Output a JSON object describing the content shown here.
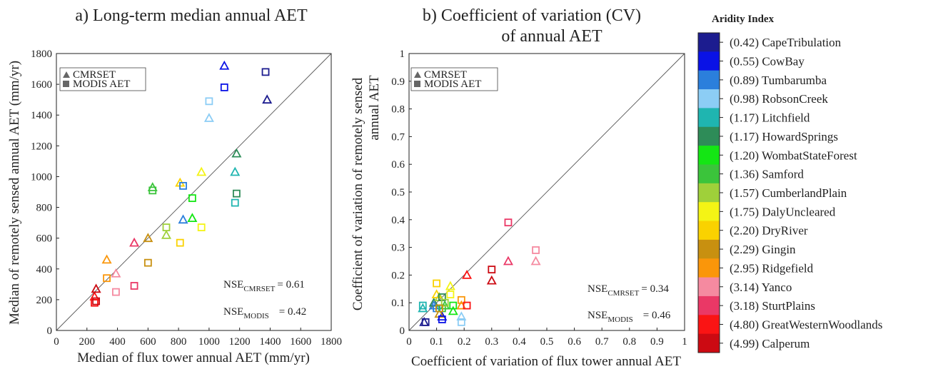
{
  "chart_data": [
    {
      "type": "scatter",
      "title": "a) Long-term median annual AET",
      "xlabel": "Median of flux tower annual AET (mm/yr)",
      "ylabel": "Median of remotely sensed annual AET (mm/yr)",
      "xlim": [
        0,
        1800
      ],
      "ylim": [
        0,
        1800
      ],
      "xticks": [
        "0",
        "200",
        "400",
        "600",
        "800",
        "1000",
        "1200",
        "1400",
        "1600",
        "1800"
      ],
      "yticks": [
        "0",
        "200",
        "400",
        "600",
        "800",
        "1000",
        "1200",
        "1400",
        "1600",
        "1800"
      ],
      "legend": {
        "placement": "top-left",
        "entries": [
          "CMRSET",
          "MODIS AET"
        ]
      },
      "annotations": [
        {
          "label": "NSE",
          "subscript": "CMRSET",
          "value": "= 0.61"
        },
        {
          "label": "NSE",
          "subscript": "MODIS",
          "value": "= 0.42"
        }
      ],
      "grid": false,
      "one_to_one_line": true,
      "series": [
        {
          "name": "CMRSET",
          "marker": "triangle",
          "points": [
            {
              "x": 1380,
              "y": 1500,
              "site": 0
            },
            {
              "x": 1100,
              "y": 1720,
              "site": 1
            },
            {
              "x": 830,
              "y": 720,
              "site": 2
            },
            {
              "x": 1000,
              "y": 1380,
              "site": 3
            },
            {
              "x": 1170,
              "y": 1030,
              "site": 4
            },
            {
              "x": 1180,
              "y": 1150,
              "site": 5
            },
            {
              "x": 890,
              "y": 730,
              "site": 6
            },
            {
              "x": 630,
              "y": 930,
              "site": 7
            },
            {
              "x": 720,
              "y": 620,
              "site": 8
            },
            {
              "x": 950,
              "y": 1030,
              "site": 9
            },
            {
              "x": 810,
              "y": 960,
              "site": 10
            },
            {
              "x": 600,
              "y": 600,
              "site": 11
            },
            {
              "x": 330,
              "y": 460,
              "site": 12
            },
            {
              "x": 390,
              "y": 370,
              "site": 13
            },
            {
              "x": 510,
              "y": 570,
              "site": 14
            },
            {
              "x": 250,
              "y": 220,
              "site": 15
            },
            {
              "x": 260,
              "y": 270,
              "site": 16
            }
          ]
        },
        {
          "name": "MODIS AET",
          "marker": "square",
          "points": [
            {
              "x": 1370,
              "y": 1680,
              "site": 0
            },
            {
              "x": 1100,
              "y": 1580,
              "site": 1
            },
            {
              "x": 830,
              "y": 940,
              "site": 2
            },
            {
              "x": 1000,
              "y": 1490,
              "site": 3
            },
            {
              "x": 1170,
              "y": 830,
              "site": 4
            },
            {
              "x": 1180,
              "y": 890,
              "site": 5
            },
            {
              "x": 890,
              "y": 860,
              "site": 6
            },
            {
              "x": 630,
              "y": 910,
              "site": 7
            },
            {
              "x": 720,
              "y": 670,
              "site": 8
            },
            {
              "x": 950,
              "y": 670,
              "site": 9
            },
            {
              "x": 810,
              "y": 570,
              "site": 10
            },
            {
              "x": 600,
              "y": 440,
              "site": 11
            },
            {
              "x": 330,
              "y": 340,
              "site": 12
            },
            {
              "x": 390,
              "y": 250,
              "site": 13
            },
            {
              "x": 510,
              "y": 290,
              "site": 14
            },
            {
              "x": 250,
              "y": 180,
              "site": 15
            },
            {
              "x": 260,
              "y": 190,
              "site": 16
            }
          ]
        }
      ]
    },
    {
      "type": "scatter",
      "title": "b) Coefficient of variation (CV)",
      "title_line2": "of annual AET",
      "xlabel": "Coefficient of variation of flux tower annual AET",
      "ylabel": "Coefficient of variation of remotely sensed",
      "ylabel_line2": "annual AET",
      "xlim": [
        0,
        1
      ],
      "ylim": [
        0,
        1
      ],
      "xticks": [
        "0",
        "0.1",
        "0.2",
        "0.3",
        "0.4",
        "0.5",
        "0.6",
        "0.7",
        "0.8",
        "0.9",
        "1"
      ],
      "yticks": [
        "0",
        "0.1",
        "0.2",
        "0.3",
        "0.4",
        "0.5",
        "0.6",
        "0.7",
        "0.8",
        "0.9",
        "1"
      ],
      "legend": {
        "placement": "top-left",
        "entries": [
          "CMRSET",
          "MODIS AET"
        ]
      },
      "annotations": [
        {
          "label": "NSE",
          "subscript": "CMRSET",
          "value": "= 0.34"
        },
        {
          "label": "NSE",
          "subscript": "MODIS",
          "value": "= 0.46"
        }
      ],
      "grid": false,
      "one_to_one_line": true,
      "series": [
        {
          "name": "CMRSET",
          "marker": "triangle",
          "points": [
            {
              "x": 0.055,
              "y": 0.03,
              "site": 0
            },
            {
              "x": 0.12,
              "y": 0.05,
              "site": 1
            },
            {
              "x": 0.09,
              "y": 0.09,
              "site": 2
            },
            {
              "x": 0.19,
              "y": 0.05,
              "site": 3
            },
            {
              "x": 0.05,
              "y": 0.08,
              "site": 4
            },
            {
              "x": 0.09,
              "y": 0.1,
              "site": 5
            },
            {
              "x": 0.16,
              "y": 0.07,
              "site": 6
            },
            {
              "x": 0.13,
              "y": 0.09,
              "site": 7
            },
            {
              "x": 0.11,
              "y": 0.12,
              "site": 8
            },
            {
              "x": 0.15,
              "y": 0.16,
              "site": 9
            },
            {
              "x": 0.1,
              "y": 0.13,
              "site": 10
            },
            {
              "x": 0.11,
              "y": 0.06,
              "site": 11
            },
            {
              "x": 0.19,
              "y": 0.09,
              "site": 12
            },
            {
              "x": 0.46,
              "y": 0.25,
              "site": 13
            },
            {
              "x": 0.36,
              "y": 0.25,
              "site": 14
            },
            {
              "x": 0.21,
              "y": 0.2,
              "site": 15
            },
            {
              "x": 0.3,
              "y": 0.18,
              "site": 16
            }
          ]
        },
        {
          "name": "MODIS AET",
          "marker": "square",
          "points": [
            {
              "x": 0.06,
              "y": 0.03,
              "site": 0
            },
            {
              "x": 0.12,
              "y": 0.04,
              "site": 1
            },
            {
              "x": 0.1,
              "y": 0.08,
              "site": 2
            },
            {
              "x": 0.19,
              "y": 0.03,
              "site": 3
            },
            {
              "x": 0.05,
              "y": 0.09,
              "site": 4
            },
            {
              "x": 0.12,
              "y": 0.12,
              "site": 5
            },
            {
              "x": 0.16,
              "y": 0.09,
              "site": 6
            },
            {
              "x": 0.12,
              "y": 0.08,
              "site": 7
            },
            {
              "x": 0.13,
              "y": 0.1,
              "site": 8
            },
            {
              "x": 0.15,
              "y": 0.13,
              "site": 9
            },
            {
              "x": 0.1,
              "y": 0.17,
              "site": 10
            },
            {
              "x": 0.11,
              "y": 0.08,
              "site": 11
            },
            {
              "x": 0.19,
              "y": 0.11,
              "site": 12
            },
            {
              "x": 0.46,
              "y": 0.29,
              "site": 13
            },
            {
              "x": 0.36,
              "y": 0.39,
              "site": 14
            },
            {
              "x": 0.21,
              "y": 0.09,
              "site": 15
            },
            {
              "x": 0.3,
              "y": 0.22,
              "site": 16
            }
          ]
        }
      ]
    }
  ],
  "colorbar": {
    "title": "Aridity Index",
    "sites": [
      {
        "label": "(0.42)  CapeTribulation",
        "color": "#1c1c8f"
      },
      {
        "label": "(0.55)  CowBay",
        "color": "#0a12e6"
      },
      {
        "label": "(0.89)  Tumbarumba",
        "color": "#2b7fdc"
      },
      {
        "label": "(0.98)  RobsonCreek",
        "color": "#8ccdf5"
      },
      {
        "label": "(1.17)  Litchfield",
        "color": "#1fb5b0"
      },
      {
        "label": "(1.17)  HowardSprings",
        "color": "#2e8c58"
      },
      {
        "label": "(1.20)  WombatStateForest",
        "color": "#14e614"
      },
      {
        "label": "(1.36)  Samford",
        "color": "#3bc43b"
      },
      {
        "label": "(1.57)  CumberlandPlain",
        "color": "#9fd03a"
      },
      {
        "label": "(1.75)  DalyUncleared",
        "color": "#f4f415"
      },
      {
        "label": "(2.20)  DryRiver",
        "color": "#fad200"
      },
      {
        "label": "(2.29)  Gingin",
        "color": "#c89010"
      },
      {
        "label": "(2.95)  Ridgefield",
        "color": "#fa960a"
      },
      {
        "label": "(3.14)  Yanco",
        "color": "#f58aa0"
      },
      {
        "label": "(3.18)  SturtPlains",
        "color": "#ea3866"
      },
      {
        "label": "(4.80)  GreatWesternWoodlands",
        "color": "#fa1414"
      },
      {
        "label": "(4.99)  Calperum",
        "color": "#cc0a12"
      }
    ]
  }
}
